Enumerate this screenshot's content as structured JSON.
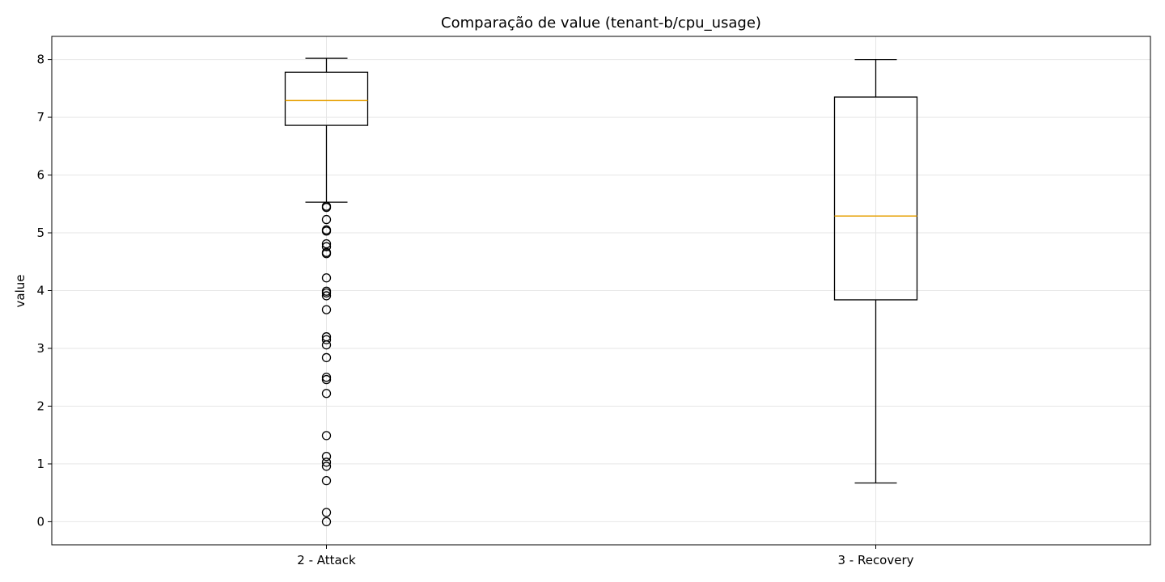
{
  "chart_data": {
    "type": "box",
    "title": "Comparação de value (tenant-b/cpu_usage)",
    "xlabel": "",
    "ylabel": "value",
    "ylim": [
      -0.4,
      8.4
    ],
    "yticks": [
      "0",
      "1",
      "2",
      "3",
      "4",
      "5",
      "6",
      "7",
      "8"
    ],
    "grid": true,
    "categories": [
      "2 - Attack",
      "3 - Recovery"
    ],
    "boxes": [
      {
        "category": "2 - Attack",
        "whisker_low": 5.53,
        "q1": 6.86,
        "median": 7.29,
        "q3": 7.78,
        "whisker_high": 8.02,
        "outliers": [
          5.46,
          5.44,
          5.23,
          5.05,
          5.03,
          4.81,
          4.76,
          4.66,
          4.64,
          4.22,
          3.99,
          3.96,
          3.91,
          3.67,
          3.2,
          3.15,
          3.06,
          2.84,
          2.5,
          2.46,
          2.22,
          1.49,
          1.13,
          1.03,
          0.96,
          0.71,
          0.16,
          0.0
        ]
      },
      {
        "category": "3 - Recovery",
        "whisker_low": 0.67,
        "q1": 3.84,
        "median": 5.29,
        "q3": 7.35,
        "whisker_high": 8.0,
        "outliers": []
      }
    ],
    "colors": {
      "box": "#000000",
      "median": "#e69f00",
      "grid": "#e6e6e6"
    }
  }
}
